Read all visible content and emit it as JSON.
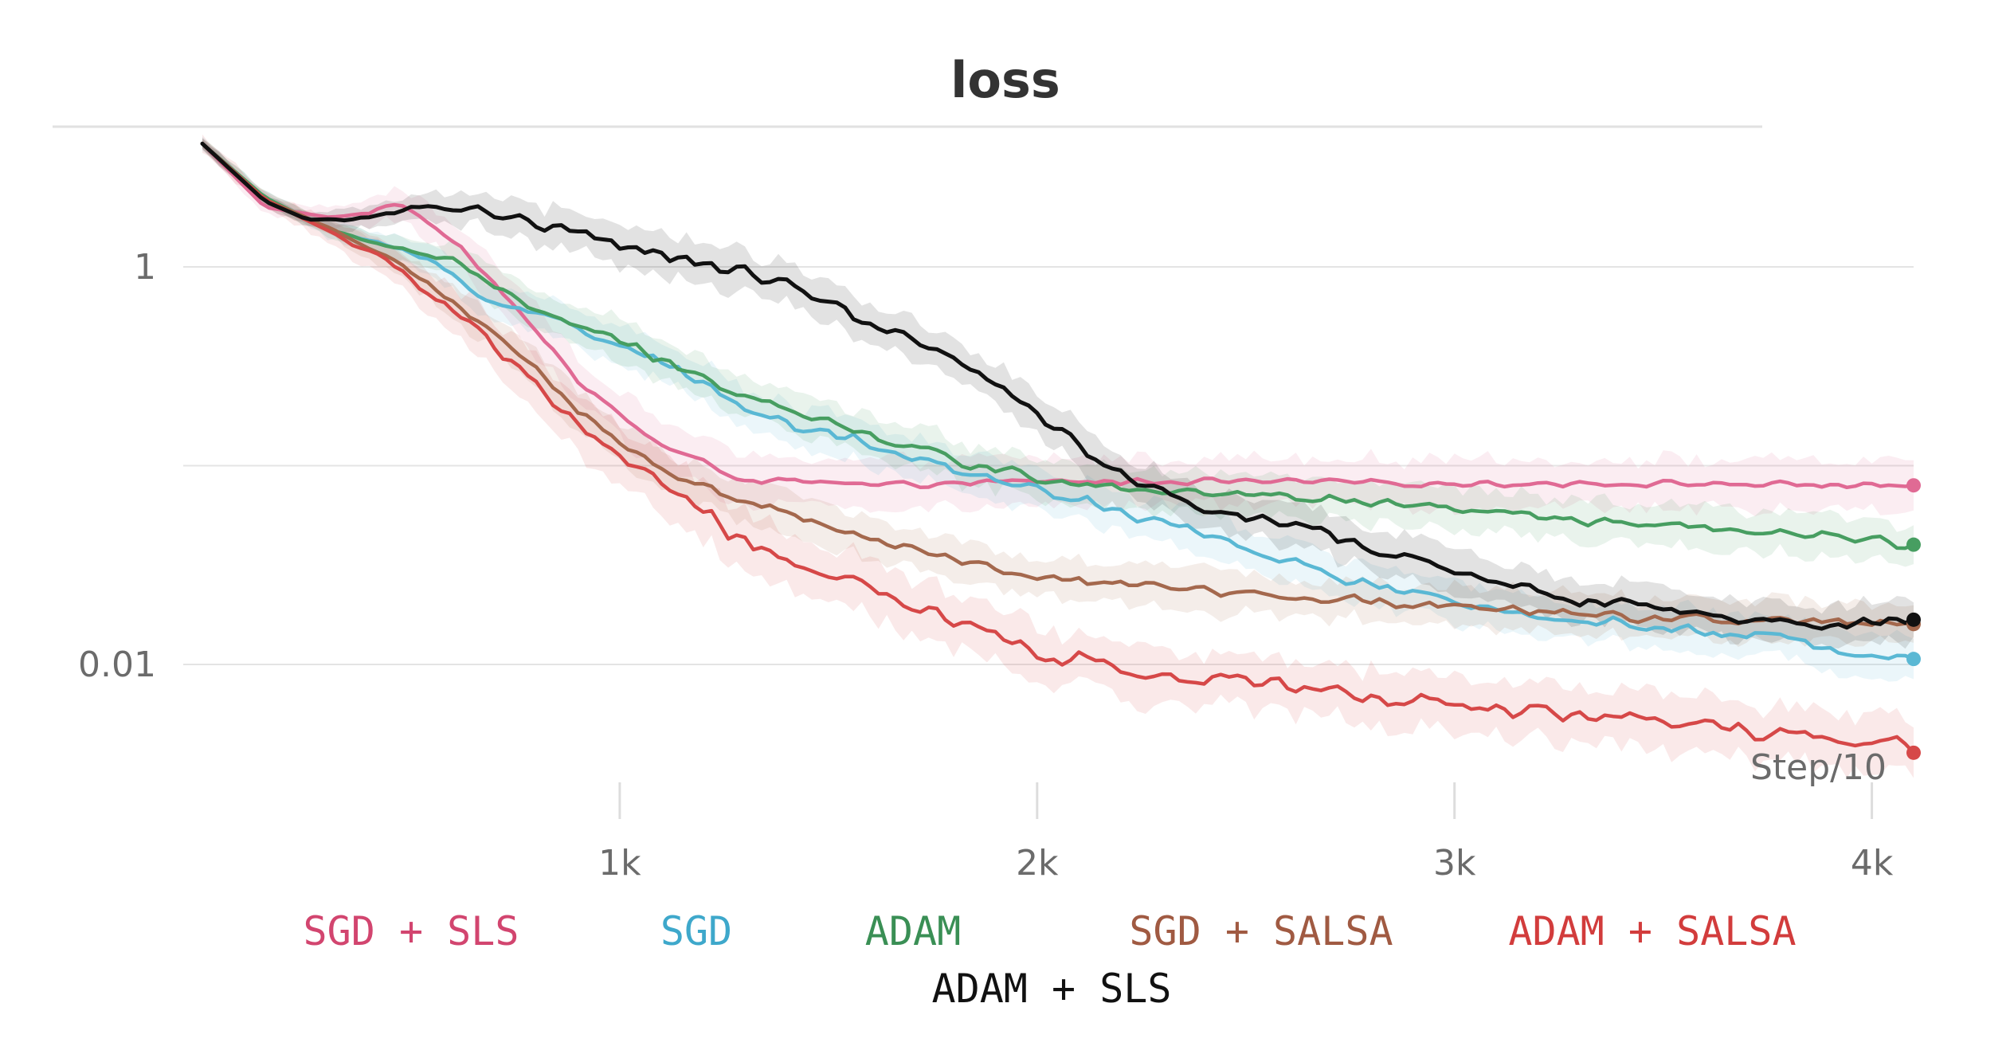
{
  "chart_data": {
    "type": "line",
    "title": "loss",
    "xlabel": "Step/10",
    "ylabel": "",
    "yscale": "log",
    "xlim": [
      0,
      4100
    ],
    "ylim_log10": [
      -2.65,
      0.95
    ],
    "x_ticks": [
      {
        "value": 1000,
        "label": "1k"
      },
      {
        "value": 2000,
        "label": "2k"
      },
      {
        "value": 3000,
        "label": "3k"
      },
      {
        "value": 4000,
        "label": "4k"
      }
    ],
    "y_ticks": [
      {
        "value_log10": 0,
        "label": "1"
      },
      {
        "value_log10": -2,
        "label": "0.01"
      }
    ],
    "y_gridlines_log10": [
      0,
      -1,
      -2
    ],
    "series": [
      {
        "name": "SGD + SLS",
        "color": "#e06a94",
        "legend_color": "#d2456f",
        "noise": 0.018,
        "band": 0.12,
        "x": [
          0,
          150,
          300,
          400,
          430,
          470,
          520,
          620,
          760,
          900,
          1100,
          1300,
          1600,
          2000,
          2500,
          3000,
          3500,
          4100
        ],
        "log_y": [
          0.62,
          0.3,
          0.25,
          0.27,
          0.31,
          0.31,
          0.26,
          0.1,
          -0.22,
          -0.58,
          -0.9,
          -1.07,
          -1.1,
          -1.08,
          -1.08,
          -1.09,
          -1.09,
          -1.1
        ]
      },
      {
        "name": "SGD",
        "color": "#5ab8d4",
        "legend_color": "#3ea8cb",
        "noise": 0.035,
        "band": 0.1,
        "x": [
          0,
          150,
          300,
          450,
          550,
          700,
          850,
          1000,
          1200,
          1400,
          1600,
          1800,
          2000,
          2200,
          2400,
          2600,
          2800,
          3000,
          3200,
          3400,
          3600,
          3800,
          4000,
          4100
        ],
        "log_y": [
          0.62,
          0.35,
          0.19,
          0.1,
          0.03,
          -0.18,
          -0.27,
          -0.38,
          -0.6,
          -0.78,
          -0.9,
          -1.02,
          -1.12,
          -1.23,
          -1.35,
          -1.48,
          -1.6,
          -1.7,
          -1.75,
          -1.8,
          -1.84,
          -1.88,
          -1.94,
          -1.94
        ]
      },
      {
        "name": "ADAM",
        "color": "#479e61",
        "legend_color": "#3a8f55",
        "noise": 0.03,
        "band": 0.1,
        "x": [
          0,
          150,
          300,
          450,
          600,
          700,
          850,
          1000,
          1200,
          1500,
          1800,
          2000,
          2300,
          2500,
          2700,
          3000,
          3300,
          3600,
          3900,
          4100
        ],
        "log_y": [
          0.62,
          0.35,
          0.19,
          0.1,
          0.03,
          -0.1,
          -0.26,
          -0.38,
          -0.56,
          -0.78,
          -0.97,
          -1.06,
          -1.12,
          -1.15,
          -1.17,
          -1.22,
          -1.28,
          -1.32,
          -1.36,
          -1.4
        ]
      },
      {
        "name": "SGD + SALSA",
        "color": "#a4684d",
        "legend_color": "#a05a42",
        "noise": 0.03,
        "band": 0.1,
        "x": [
          0,
          150,
          300,
          450,
          500,
          600,
          700,
          800,
          950,
          1100,
          1300,
          1500,
          1700,
          2000,
          2300,
          2600,
          3000,
          3300,
          3600,
          3900,
          4100
        ],
        "log_y": [
          0.62,
          0.34,
          0.2,
          0.05,
          -0.03,
          -0.18,
          -0.35,
          -0.53,
          -0.8,
          -1.02,
          -1.18,
          -1.3,
          -1.43,
          -1.57,
          -1.61,
          -1.66,
          -1.71,
          -1.75,
          -1.77,
          -1.79,
          -1.8
        ]
      },
      {
        "name": "ADAM + SALSA",
        "color": "#d64848",
        "legend_color": "#d23c3c",
        "noise": 0.05,
        "band": 0.14,
        "x": [
          0,
          150,
          300,
          450,
          600,
          750,
          900,
          1100,
          1300,
          1500,
          1700,
          2000,
          2300,
          2600,
          3000,
          3300,
          3600,
          3900,
          4100
        ],
        "log_y": [
          0.62,
          0.34,
          0.18,
          0.02,
          -0.22,
          -0.48,
          -0.8,
          -1.1,
          -1.38,
          -1.55,
          -1.7,
          -1.95,
          -2.05,
          -2.12,
          -2.2,
          -2.25,
          -2.3,
          -2.38,
          -2.4
        ]
      },
      {
        "name": "ADAM + SLS",
        "color": "#111111",
        "legend_color": "#111111",
        "noise": 0.04,
        "band": 0.1,
        "x": [
          0,
          150,
          250,
          350,
          450,
          550,
          650,
          800,
          1000,
          1200,
          1400,
          1500,
          1600,
          1800,
          2000,
          2200,
          2300,
          2500,
          2700,
          2900,
          3100,
          3300,
          3500,
          3700,
          3900,
          4100
        ],
        "log_y": [
          0.62,
          0.33,
          0.24,
          0.23,
          0.27,
          0.3,
          0.29,
          0.22,
          0.11,
          0.02,
          -0.08,
          -0.17,
          -0.28,
          -0.45,
          -0.75,
          -1.05,
          -1.15,
          -1.27,
          -1.35,
          -1.47,
          -1.57,
          -1.68,
          -1.73,
          -1.78,
          -1.8,
          -1.78
        ]
      }
    ],
    "legend": {
      "placement": "bottom",
      "items": [
        {
          "label": "SGD + SLS",
          "color": "#d2456f"
        },
        {
          "label": "SGD",
          "color": "#3ea8cb"
        },
        {
          "label": "ADAM",
          "color": "#3a8f55"
        },
        {
          "label": "SGD + SALSA",
          "color": "#a05a42"
        },
        {
          "label": "ADAM + SALSA",
          "color": "#d23c3c"
        },
        {
          "label": "ADAM + SLS",
          "color": "#111111"
        }
      ]
    }
  }
}
